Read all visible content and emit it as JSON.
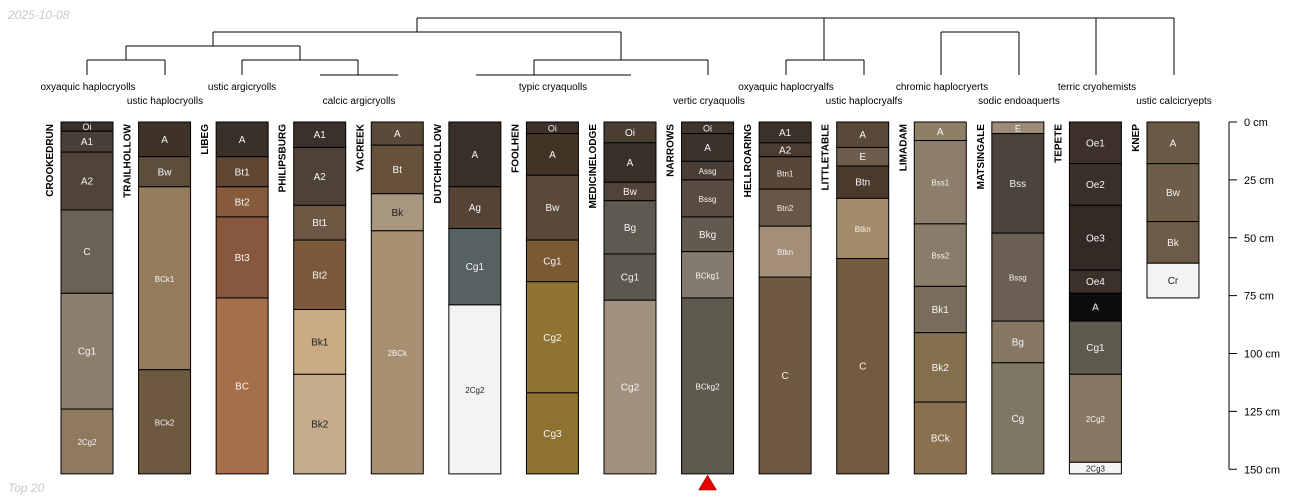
{
  "header": {
    "date": "2025-10-08",
    "footer": "Top 20"
  },
  "marker": {
    "profile_index": 8,
    "color": "#e00000"
  },
  "depth_axis": {
    "max_cm": 150,
    "ticks": [
      0,
      25,
      50,
      75,
      100,
      125,
      150
    ],
    "unit": "cm"
  },
  "dendrogram": {
    "leaves": [
      {
        "label": "oxyaquic haplocryolls"
      },
      {
        "label": "ustic haplocryolls"
      },
      {
        "label": "ustic argicryolls"
      },
      {
        "label": "calcic argicryolls"
      },
      {
        "label": "typic cryaquolls"
      },
      {
        "label": "vertic cryaquolls"
      },
      {
        "label": "oxyaquic haplocryalfs"
      },
      {
        "label": "ustic haplocryalfs"
      },
      {
        "label": "chromic haplocryerts"
      },
      {
        "label": "sodic endoaquerts"
      },
      {
        "label": "terric cryohemists"
      },
      {
        "label": "ustic calcicryepts"
      }
    ]
  },
  "profiles": [
    {
      "name": "CROOKEDRUN",
      "horizons": [
        {
          "name": "Oi",
          "top": 0,
          "bottom": 4,
          "color": "#3a302a"
        },
        {
          "name": "A1",
          "top": 4,
          "bottom": 13,
          "color": "#4a3f37"
        },
        {
          "name": "A2",
          "top": 13,
          "bottom": 38,
          "color": "#504438"
        },
        {
          "name": "C",
          "top": 38,
          "bottom": 74,
          "color": "#6c6157"
        },
        {
          "name": "Cg1",
          "top": 74,
          "bottom": 124,
          "color": "#8c7f6e"
        },
        {
          "name": "2Cg2",
          "top": 124,
          "bottom": 152,
          "color": "#8e7a5e"
        }
      ]
    },
    {
      "name": "TRAILHOLLOW",
      "horizons": [
        {
          "name": "A",
          "top": 0,
          "bottom": 15,
          "color": "#3f3226"
        },
        {
          "name": "Bw",
          "top": 15,
          "bottom": 28,
          "color": "#5d4e3c"
        },
        {
          "name": "BCk1",
          "top": 28,
          "bottom": 107,
          "color": "#937b5c"
        },
        {
          "name": "BCk2",
          "top": 107,
          "bottom": 152,
          "color": "#6d5840"
        }
      ]
    },
    {
      "name": "LIBEG",
      "horizons": [
        {
          "name": "A",
          "top": 0,
          "bottom": 15,
          "color": "#383029"
        },
        {
          "name": "Bt1",
          "top": 15,
          "bottom": 28,
          "color": "#604530"
        },
        {
          "name": "Bt2",
          "top": 28,
          "bottom": 41,
          "color": "#855b3c"
        },
        {
          "name": "Bt3",
          "top": 41,
          "bottom": 76,
          "color": "#87583d"
        },
        {
          "name": "BC",
          "top": 76,
          "bottom": 152,
          "color": "#a66e4a"
        }
      ]
    },
    {
      "name": "PHILIPSBURG",
      "horizons": [
        {
          "name": "A1",
          "top": 0,
          "bottom": 11,
          "color": "#3b312a"
        },
        {
          "name": "A2",
          "top": 11,
          "bottom": 36,
          "color": "#4e4236"
        },
        {
          "name": "Bt1",
          "top": 36,
          "bottom": 51,
          "color": "#6e5843"
        },
        {
          "name": "Bt2",
          "top": 51,
          "bottom": 81,
          "color": "#7a5a3a"
        },
        {
          "name": "Bk1",
          "top": 81,
          "bottom": 109,
          "color": "#c9ab84"
        },
        {
          "name": "Bk2",
          "top": 109,
          "bottom": 152,
          "color": "#c6ab8c"
        }
      ]
    },
    {
      "name": "YACREEK",
      "horizons": [
        {
          "name": "A",
          "top": 0,
          "bottom": 10,
          "color": "#5a4a3a"
        },
        {
          "name": "Bt",
          "top": 10,
          "bottom": 31,
          "color": "#67513a"
        },
        {
          "name": "Bk",
          "top": 31,
          "bottom": 47,
          "color": "#a9967f"
        },
        {
          "name": "2BCk",
          "top": 47,
          "bottom": 152,
          "color": "#a88f72"
        }
      ]
    },
    {
      "name": "DUTCHHOLLOW",
      "horizons": [
        {
          "name": "A",
          "top": 0,
          "bottom": 28,
          "color": "#3a2f29"
        },
        {
          "name": "Ag",
          "top": 28,
          "bottom": 46,
          "color": "#574335"
        },
        {
          "name": "Cg1",
          "top": 46,
          "bottom": 79,
          "color": "#576162"
        },
        {
          "name": "2Cg2",
          "top": 79,
          "bottom": 152,
          "color": "#f3f3f3"
        }
      ]
    },
    {
      "name": "FOOLHEN",
      "horizons": [
        {
          "name": "Oi",
          "top": 0,
          "bottom": 5,
          "color": "#3c3029"
        },
        {
          "name": "A",
          "top": 5,
          "bottom": 23,
          "color": "#413427"
        },
        {
          "name": "Bw",
          "top": 23,
          "bottom": 51,
          "color": "#5b4a3a"
        },
        {
          "name": "Cg1",
          "top": 51,
          "bottom": 69,
          "color": "#7a5a34"
        },
        {
          "name": "Cg2",
          "top": 69,
          "bottom": 117,
          "color": "#927432"
        },
        {
          "name": "Cg3",
          "top": 117,
          "bottom": 152,
          "color": "#8e7232"
        }
      ]
    },
    {
      "name": "MEDICINELODGE",
      "horizons": [
        {
          "name": "Oi",
          "top": 0,
          "bottom": 9,
          "color": "#4a3e33"
        },
        {
          "name": "A",
          "top": 9,
          "bottom": 26,
          "color": "#3a3029"
        },
        {
          "name": "Bw",
          "top": 26,
          "bottom": 34,
          "color": "#51433a"
        },
        {
          "name": "Bg",
          "top": 34,
          "bottom": 57,
          "color": "#5f5a50"
        },
        {
          "name": "Cg1",
          "top": 57,
          "bottom": 77,
          "color": "#5d584e"
        },
        {
          "name": "Cg2",
          "top": 77,
          "bottom": 152,
          "color": "#a19280"
        }
      ]
    },
    {
      "name": "NARROWS",
      "horizons": [
        {
          "name": "Oi",
          "top": 0,
          "bottom": 5,
          "color": "#40352c"
        },
        {
          "name": "A",
          "top": 5,
          "bottom": 17,
          "color": "#3b312b"
        },
        {
          "name": "Assg",
          "top": 17,
          "bottom": 25,
          "color": "#4b3f35"
        },
        {
          "name": "Bssg",
          "top": 25,
          "bottom": 41,
          "color": "#5a4b42"
        },
        {
          "name": "Bkg",
          "top": 41,
          "bottom": 56,
          "color": "#62594f"
        },
        {
          "name": "BCkg1",
          "top": 56,
          "bottom": 76,
          "color": "#847a6d"
        },
        {
          "name": "BCkg2",
          "top": 76,
          "bottom": 152,
          "color": "#5e5a4e"
        }
      ]
    },
    {
      "name": "HELLROARING",
      "horizons": [
        {
          "name": "A1",
          "top": 0,
          "bottom": 9,
          "color": "#3d3229"
        },
        {
          "name": "A2",
          "top": 9,
          "bottom": 15,
          "color": "#4a3c30"
        },
        {
          "name": "Btn1",
          "top": 15,
          "bottom": 29,
          "color": "#5a4636"
        },
        {
          "name": "Btn2",
          "top": 29,
          "bottom": 45,
          "color": "#6a5646"
        },
        {
          "name": "Btkn",
          "top": 45,
          "bottom": 67,
          "color": "#a38e78"
        },
        {
          "name": "C",
          "top": 67,
          "bottom": 152,
          "color": "#6d5a40"
        }
      ]
    },
    {
      "name": "LITTLETABLE",
      "horizons": [
        {
          "name": "A",
          "top": 0,
          "bottom": 11,
          "color": "#5a4838"
        },
        {
          "name": "E",
          "top": 11,
          "bottom": 19,
          "color": "#6e5c4c"
        },
        {
          "name": "Btn",
          "top": 19,
          "bottom": 33,
          "color": "#4a3a2c"
        },
        {
          "name": "Btkn",
          "top": 33,
          "bottom": 59,
          "color": "#a58b6c"
        },
        {
          "name": "C",
          "top": 59,
          "bottom": 152,
          "color": "#735b40"
        }
      ]
    },
    {
      "name": "LIMADAM",
      "horizons": [
        {
          "name": "A",
          "top": 0,
          "bottom": 8,
          "color": "#8e8066"
        },
        {
          "name": "Bss1",
          "top": 8,
          "bottom": 44,
          "color": "#8d7e6b"
        },
        {
          "name": "Bss2",
          "top": 44,
          "bottom": 71,
          "color": "#8a7c6a"
        },
        {
          "name": "Bk1",
          "top": 71,
          "bottom": 91,
          "color": "#7b6d5b"
        },
        {
          "name": "Bk2",
          "top": 91,
          "bottom": 121,
          "color": "#85704e"
        },
        {
          "name": "BCk",
          "top": 121,
          "bottom": 152,
          "color": "#8b7050"
        }
      ]
    },
    {
      "name": "MATSINGALE",
      "horizons": [
        {
          "name": "E",
          "top": 0,
          "bottom": 5,
          "color": "#9b8b78"
        },
        {
          "name": "Bss",
          "top": 5,
          "bottom": 48,
          "color": "#4a443b"
        },
        {
          "name": "Bssg",
          "top": 48,
          "bottom": 86,
          "color": "#6a5f52"
        },
        {
          "name": "Bg",
          "top": 86,
          "bottom": 104,
          "color": "#857763"
        },
        {
          "name": "Cg",
          "top": 104,
          "bottom": 152,
          "color": "#807666"
        }
      ]
    },
    {
      "name": "TEPETE",
      "horizons": [
        {
          "name": "Oe1",
          "top": 0,
          "bottom": 18,
          "color": "#3d3029"
        },
        {
          "name": "Oe2",
          "top": 18,
          "bottom": 36,
          "color": "#3a2f29"
        },
        {
          "name": "Oe3",
          "top": 36,
          "bottom": 64,
          "color": "#342a25"
        },
        {
          "name": "Oe4",
          "top": 64,
          "bottom": 74,
          "color": "#3b302a"
        },
        {
          "name": "A",
          "top": 74,
          "bottom": 86,
          "color": "#0e0c0b"
        },
        {
          "name": "Cg1",
          "top": 86,
          "bottom": 109,
          "color": "#5d5a4e"
        },
        {
          "name": "2Cg2",
          "top": 109,
          "bottom": 147,
          "color": "#887863"
        },
        {
          "name": "2Cg3",
          "top": 147,
          "bottom": 152,
          "color": "#f5f5f5"
        }
      ]
    },
    {
      "name": "KNEP",
      "horizons": [
        {
          "name": "A",
          "top": 0,
          "bottom": 18,
          "color": "#6a5a45"
        },
        {
          "name": "Bw",
          "top": 18,
          "bottom": 43,
          "color": "#6e5d48"
        },
        {
          "name": "Bk",
          "top": 43,
          "bottom": 61,
          "color": "#6c5b47"
        },
        {
          "name": "Cr",
          "top": 61,
          "bottom": 76,
          "color": "#f3f3f3"
        }
      ]
    }
  ]
}
